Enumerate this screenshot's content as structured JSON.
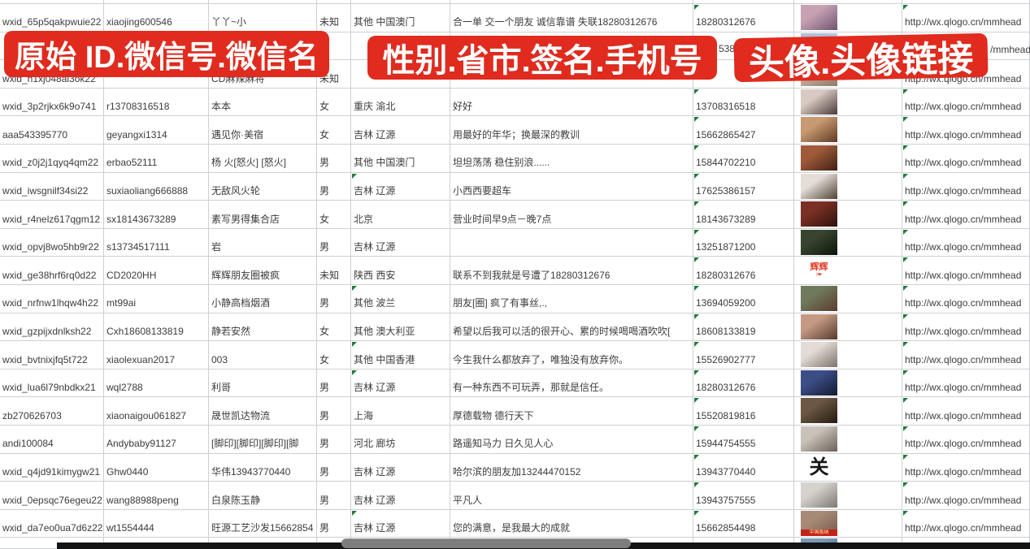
{
  "app": {
    "kind": "spreadsheet-screenshot",
    "subject": "WeChat contact data sheet with red sticker labels"
  },
  "colors": {
    "banner_red": "#e02b1e",
    "grid_line": "#ccd0d4",
    "cell_text": "#3c3c3c",
    "error_triangle_green": "#1f7a3c",
    "scrollbar_track": "#141414",
    "scrollbar_thumb": "#7d7d7d"
  },
  "banners": {
    "left": "原始 ID.微信号.微信名",
    "middle": "性别.省市.签名.手机号",
    "right": "头像.头像链接"
  },
  "columns": [
    "原始ID",
    "微信号",
    "微信名",
    "性别",
    "省市",
    "签名",
    "手机号",
    "头像",
    "头像链接"
  ],
  "link_text": "http://wx.qlogo.cn/mmhead",
  "covered_row_fragments": {
    "phone_tail": "5386",
    "link_tail": "/mmhead"
  },
  "rows": [
    {
      "original_id": "wxid_65p5qakpwuie22",
      "wechat_id": "xiaojing600546",
      "wechat_name": "丫丫~小",
      "gender": "未知",
      "region": "其他 中国澳门",
      "signature": "合一单 交一个朋友 诚信靠谱 失联18280312676",
      "phone": "18280312676",
      "link": true,
      "avatar": {
        "desc": "woman-portrait-photo",
        "bg1": "#c7a2b4",
        "bg2": "#6e5570"
      }
    },
    {
      "original_id": "",
      "wechat_id": "",
      "wechat_name": "",
      "gender": "",
      "region": "",
      "signature": "",
      "phone": "",
      "link": false,
      "covered_by_banner": true,
      "avatar": {
        "desc": "photo",
        "bg1": "#aebfd6",
        "bg2": "#d9e2ea"
      }
    },
    {
      "original_id": "wxid_h1xj048al3ok22",
      "wechat_id": "",
      "wechat_name": "CD麻辣麻将",
      "gender": "未知",
      "region": "",
      "signature": "",
      "phone": "",
      "link": true,
      "avatar": {
        "desc": "photo",
        "bg1": "#c2b0a0",
        "bg2": "#8f7a6a"
      }
    },
    {
      "original_id": "wxid_3p2rjkx6k9o741",
      "wechat_id": "r13708316518",
      "wechat_name": "本本",
      "gender": "女",
      "region": "重庆 渝北",
      "signature": "好好",
      "phone": "13708316518",
      "link": true,
      "avatar": {
        "desc": "woman-dark-hair-photo",
        "bg1": "#d8c9c2",
        "bg2": "#4a3a38"
      }
    },
    {
      "original_id": "aaa543395770",
      "wechat_id": "geyangxi1314",
      "wechat_name": "遇见你·美宿",
      "gender": "女",
      "region": "吉林 辽源",
      "signature": "用最好的年华；换最深的教训",
      "phone": "15662865427",
      "link": true,
      "avatar": {
        "desc": "warm-brown-photo",
        "bg1": "#c79a72",
        "bg2": "#5f3a22"
      }
    },
    {
      "original_id": "wxid_z0j2j1qyq4qm22",
      "wechat_id": "erbao52111",
      "wechat_name": "杨 火[怒火] [怒火]",
      "gender": "男",
      "region": "其他 中国澳门",
      "signature": "坦坦荡荡 稳住别浪......",
      "phone": "15844702210",
      "link": true,
      "avatar": {
        "desc": "red-figurines-photo",
        "bg1": "#9e5a3a",
        "bg2": "#402014"
      }
    },
    {
      "original_id": "wxid_iwsgnilf34si22",
      "wechat_id": "suxiaoliang666888",
      "wechat_name": "无敌风火轮",
      "gender": "男",
      "region": "吉林 辽源",
      "signature": "小西西要超车",
      "phone": "17625386157",
      "link": true,
      "region_flag": true,
      "avatar": {
        "desc": "boy-in-car-photo",
        "bg1": "#e4ded6",
        "bg2": "#4e4038"
      }
    },
    {
      "original_id": "wxid_r4nelz617qgm12",
      "wechat_id": "sx18143673289",
      "wechat_name": "素写男得集合店",
      "gender": "女",
      "region": "北京",
      "signature": "营业时间早9点－晚7点",
      "phone": "18143673289",
      "link": true,
      "avatar": {
        "desc": "dark-red-storefront-photo",
        "bg1": "#7a3024",
        "bg2": "#2e120c"
      }
    },
    {
      "original_id": "wxid_opvj8wo5hb9r22",
      "wechat_id": "s13734517111",
      "wechat_name": "岩",
      "gender": "男",
      "region": "吉林 辽源",
      "signature": "",
      "phone": "13251871200",
      "link": true,
      "avatar": {
        "desc": "dark-green-poster",
        "bg1": "#37452f",
        "bg2": "#0c140a"
      }
    },
    {
      "original_id": "wxid_ge38hrf6rq0d22",
      "wechat_id": "CD2020HH",
      "wechat_name": "辉辉朋友圈被疯",
      "gender": "未知",
      "region": "陕西 西安",
      "signature": "联系不到我就是号遭了18280312676",
      "phone": "18280312676",
      "link": true,
      "avatar": {
        "desc": "white-card-red-text",
        "bg": "#ffffff",
        "text": "辉辉",
        "text_color": "#e23c28",
        "text_size": 11,
        "sub": "I❤"
      }
    },
    {
      "original_id": "wxid_nrfnw1lhqw4h22",
      "wechat_id": "mt99ai",
      "wechat_name": "小静高档烟酒",
      "gender": "男",
      "region": "其他 波兰",
      "signature": "朋友[圈] 疯了有事丝,.,",
      "phone": "13694059200",
      "link": true,
      "region_flag": true,
      "avatar": {
        "desc": "woman-in-car-photo",
        "bg1": "#6f7a5c",
        "bg2": "#5d3b2e"
      }
    },
    {
      "original_id": "wxid_gzpijxdnlksh22",
      "wechat_id": "Cxh18608133819",
      "wechat_name": "静若安然",
      "gender": "女",
      "region": "其他 澳大利亚",
      "signature": "希望以后我可以活的很开心、累的时候喝喝酒吹吹[",
      "phone": "18608133819",
      "link": true,
      "avatar": {
        "desc": "woman-selfie-photo",
        "bg1": "#c59a85",
        "bg2": "#57392c"
      }
    },
    {
      "original_id": "wxid_bvtnixjfq5t722",
      "wechat_id": "xiaolexuan2017",
      "wechat_name": "003",
      "gender": "女",
      "region": "其他 中国香港",
      "signature": "今生我什么都放弃了，唯独没有放弃你。",
      "phone": "15526902777",
      "link": true,
      "region_flag": true,
      "avatar": {
        "desc": "woman-light-photo",
        "bg1": "#e3dcd6",
        "bg2": "#7e726b"
      }
    },
    {
      "original_id": "wxid_lua6l79nbdkx21",
      "wechat_id": "wql2788",
      "wechat_name": "利哥",
      "gender": "男",
      "region": "吉林 辽源",
      "signature": "有一种东西不可玩弄，那就是信任。",
      "phone": "18280312676",
      "link": true,
      "region_flag": true,
      "avatar": {
        "desc": "dark-blue-collage",
        "bg1": "#3c4e86",
        "bg2": "#121a33"
      }
    },
    {
      "original_id": "zb270626703",
      "wechat_id": "xiaonaigou061827",
      "wechat_name": "晟世凯达物流",
      "gender": "男",
      "region": "上海",
      "signature": "厚德载物 德行天下",
      "phone": "15520819816",
      "link": true,
      "avatar": {
        "desc": "night-storefront-photo",
        "bg1": "#6b5743",
        "bg2": "#241a10"
      }
    },
    {
      "original_id": "andi100084",
      "wechat_id": "Andybaby91127",
      "wechat_name": "[脚印][脚印][脚印][脚",
      "gender": "男",
      "region": "河北 廊坊",
      "signature": "路遥知马力 日久见人心",
      "phone": "15944754555",
      "link": true,
      "avatar": {
        "desc": "gray-person-photo",
        "bg1": "#c9c2ba",
        "bg2": "#6b6158"
      }
    },
    {
      "original_id": "wxid_q4jd91kimygw21",
      "wechat_id": "Ghw0440",
      "wechat_name": "华伟13943770440",
      "gender": "男",
      "region": "吉林 辽源",
      "signature": "哈尔滨的朋友加13244470152",
      "phone": "13943770440",
      "link": true,
      "avatar": {
        "desc": "white-card-black-calligraphy",
        "bg": "#ffffff",
        "text": "关",
        "text_color": "#161616",
        "text_size": 24
      }
    },
    {
      "original_id": "wxid_0epsqc76egeu22",
      "wechat_id": "wang88988peng",
      "wechat_name": "白泉陈玉静",
      "gender": "男",
      "region": "吉林 辽源",
      "signature": "平凡人",
      "phone": "13943757555",
      "link": true,
      "avatar": {
        "desc": "light-gray-person-photo",
        "bg1": "#d6d2ce",
        "bg2": "#7e7872"
      }
    },
    {
      "original_id": "wxid_da7eo0ua7d6z22",
      "wechat_id": "wt1554444",
      "wechat_name": "旺源工艺沙发15662854",
      "gender": "男",
      "region": "吉林 辽源",
      "signature": "您的满意，是我最大的成就",
      "phone": "15662854498",
      "link": true,
      "region_flag": true,
      "avatar": {
        "desc": "photo-with-red-caption-strip",
        "bg1": "#a78a76",
        "bg2": "#77584a",
        "strip_text": "中国版纳"
      }
    },
    {
      "original_id": "",
      "wechat_id": "",
      "wechat_name": "",
      "gender": "",
      "region": "",
      "signature": "",
      "phone": "",
      "link": false,
      "partial_bottom_row": true,
      "avatar": {
        "desc": "blue-person-photo",
        "bg1": "#7d98b5",
        "bg2": "#4a6688"
      }
    }
  ]
}
